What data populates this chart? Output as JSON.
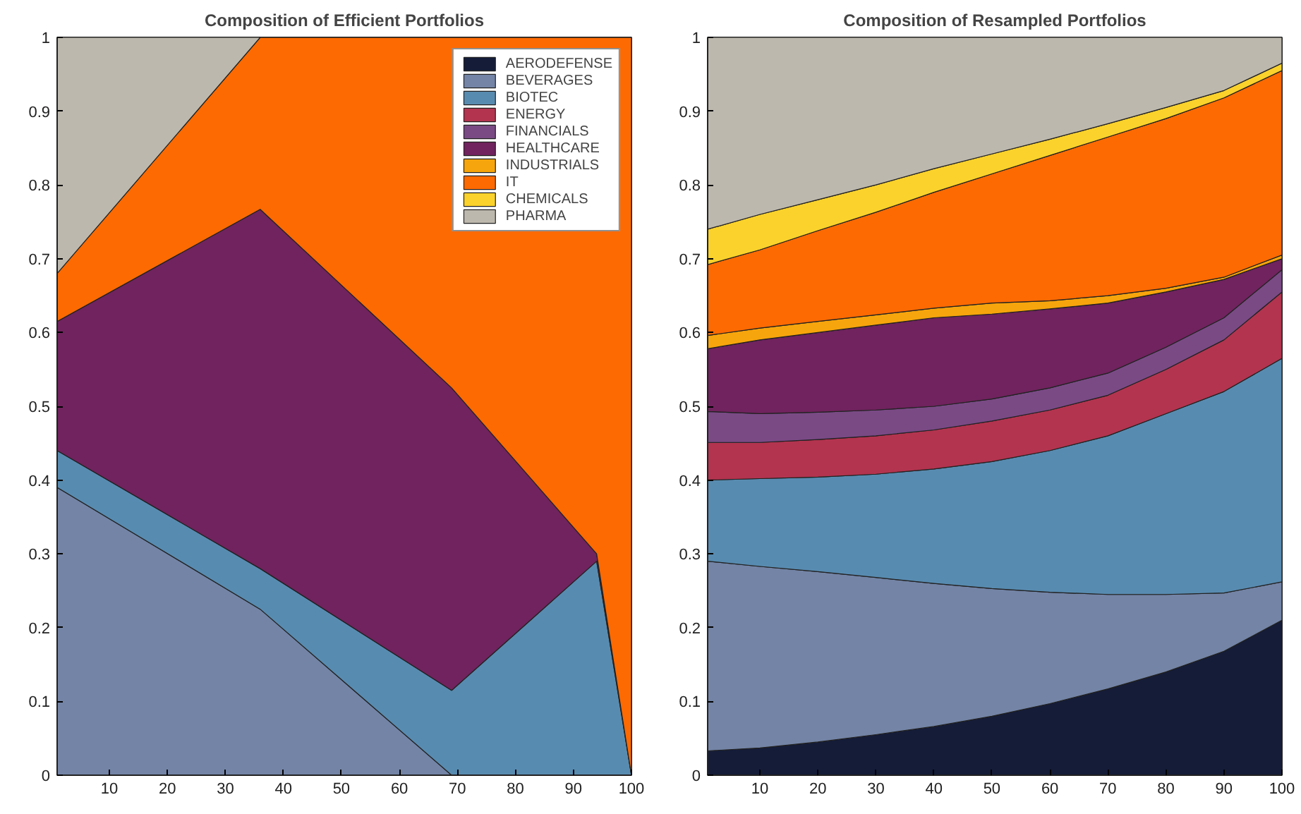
{
  "chart_data": [
    {
      "type": "area",
      "stacked": true,
      "title": "Composition of Efficient Portfolios",
      "x": [
        1,
        36,
        69,
        94,
        100
      ],
      "xlim": [
        1,
        100
      ],
      "ylim": [
        0,
        1
      ],
      "xticks": [
        10,
        20,
        30,
        40,
        50,
        60,
        70,
        80,
        90,
        100
      ],
      "yticks": [
        0,
        0.1,
        0.2,
        0.3,
        0.4,
        0.5,
        0.6,
        0.7,
        0.8,
        0.9,
        1
      ],
      "legend": "top right",
      "series": [
        {
          "name": "AERODEFENSE",
          "color": "#141c38",
          "values": [
            null,
            null,
            null,
            null,
            null
          ]
        },
        {
          "name": "BEVERAGES",
          "color": "#7384a6",
          "values": [
            0.39,
            0.225,
            0,
            0,
            0
          ]
        },
        {
          "name": "BIOTEC",
          "color": "#588bb0",
          "values": [
            0.05,
            0.055,
            0.115,
            0.29,
            0
          ]
        },
        {
          "name": "ENERGY",
          "color": "#b3344f",
          "values": [
            null,
            null,
            null,
            null,
            null
          ]
        },
        {
          "name": "FINANCIALS",
          "color": "#7a4a85",
          "values": [
            null,
            null,
            null,
            null,
            null
          ]
        },
        {
          "name": "HEALTHCARE",
          "color": "#70235e",
          "values": [
            0.175,
            0.487,
            0.41,
            0.01,
            0
          ]
        },
        {
          "name": "INDUSTRIALS",
          "color": "#f7a50c",
          "values": [
            null,
            null,
            null,
            null,
            null
          ]
        },
        {
          "name": "IT",
          "color": "#fd6a02",
          "values": [
            0.065,
            0.233,
            0.475,
            0.7,
            1
          ]
        },
        {
          "name": "CHEMICALS",
          "color": "#fbd22b",
          "values": [
            null,
            null,
            null,
            null,
            null
          ]
        },
        {
          "name": "PHARMA",
          "color": "#bdb8ad",
          "values": [
            0.32,
            0,
            0,
            0,
            0
          ]
        }
      ]
    },
    {
      "type": "area",
      "stacked": true,
      "title": "Composition of Resampled Portfolios",
      "x": [
        1,
        10,
        20,
        30,
        40,
        50,
        60,
        70,
        80,
        90,
        100
      ],
      "xlim": [
        1,
        100
      ],
      "ylim": [
        0,
        1
      ],
      "xticks": [
        10,
        20,
        30,
        40,
        50,
        60,
        70,
        80,
        90,
        100
      ],
      "yticks": [
        0,
        0.1,
        0.2,
        0.3,
        0.4,
        0.5,
        0.6,
        0.7,
        0.8,
        0.9,
        1
      ],
      "series": [
        {
          "color": "#141c38",
          "values": [
            0.033,
            0.037,
            0.045,
            0.055,
            0.066,
            0.08,
            0.097,
            0.117,
            0.14,
            0.168,
            0.21
          ]
        },
        {
          "color": "#7384a6",
          "values": [
            0.257,
            0.246,
            0.231,
            0.213,
            0.194,
            0.173,
            0.151,
            0.128,
            0.105,
            0.079,
            0.052
          ]
        },
        {
          "color": "#588bb0",
          "values": [
            0.11,
            0.119,
            0.128,
            0.14,
            0.155,
            0.172,
            0.192,
            0.215,
            0.245,
            0.273,
            0.303
          ]
        },
        {
          "color": "#b3344f",
          "values": [
            0.051,
            0.049,
            0.051,
            0.052,
            0.053,
            0.055,
            0.055,
            0.055,
            0.06,
            0.07,
            0.09
          ]
        },
        {
          "color": "#7a4a85",
          "values": [
            0.042,
            0.039,
            0.037,
            0.035,
            0.032,
            0.03,
            0.03,
            0.03,
            0.03,
            0.03,
            0.03
          ]
        },
        {
          "color": "#70235e",
          "values": [
            0.085,
            0.1,
            0.108,
            0.115,
            0.12,
            0.115,
            0.107,
            0.095,
            0.075,
            0.052,
            0.015
          ]
        },
        {
          "color": "#f7a50c",
          "values": [
            0.018,
            0.016,
            0.015,
            0.014,
            0.013,
            0.015,
            0.011,
            0.01,
            0.005,
            0.003,
            0.005
          ]
        },
        {
          "color": "#fd6a02",
          "values": [
            0.096,
            0.106,
            0.123,
            0.139,
            0.157,
            0.175,
            0.197,
            0.215,
            0.23,
            0.243,
            0.25
          ]
        },
        {
          "color": "#fbd22b",
          "values": [
            0.048,
            0.048,
            0.042,
            0.037,
            0.032,
            0.027,
            0.022,
            0.018,
            0.015,
            0.01,
            0.01
          ]
        },
        {
          "color": "#bdb8ad",
          "values": [
            0.26,
            0.24,
            0.22,
            0.2,
            0.178,
            0.158,
            0.138,
            0.117,
            0.095,
            0.072,
            0.035
          ]
        }
      ]
    }
  ]
}
